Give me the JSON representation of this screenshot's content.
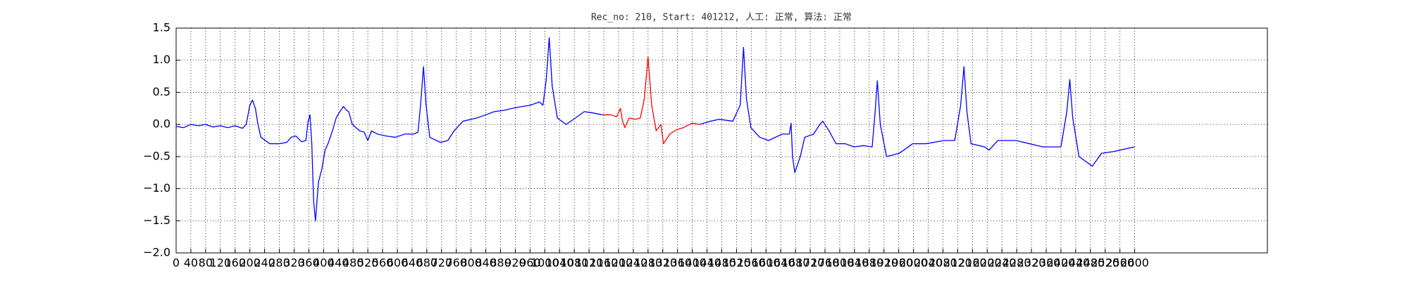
{
  "chart_data": {
    "type": "line",
    "title": "Rec_no: 210, Start: 401212, 人工: 正常, 算法: 正常",
    "xlim": [
      0,
      2960
    ],
    "xticks": [
      0,
      40,
      80,
      120,
      160,
      200,
      240,
      280,
      320,
      360,
      400,
      440,
      480,
      520,
      560,
      600,
      640,
      680,
      720,
      760,
      800,
      840,
      880,
      920,
      960,
      1000,
      1040,
      1080,
      1120,
      1160,
      1200,
      1240,
      1280,
      1320,
      1360,
      1400,
      1440,
      1480,
      1520,
      1560,
      1600,
      1640,
      1680,
      1720,
      1760,
      1800,
      1840,
      1880,
      1920,
      1960,
      2000,
      2040,
      2080,
      2120,
      2160,
      2200,
      2240,
      2280,
      2320,
      2360,
      2400,
      2440,
      2480,
      2520,
      2560,
      2600
    ],
    "ylim": [
      -2,
      1.5
    ],
    "yticks": [
      {
        "value": -2,
        "label": "−2.0"
      },
      {
        "value": -1.5,
        "label": "−1.5"
      },
      {
        "value": -1,
        "label": "−1.0"
      },
      {
        "value": -0.5,
        "label": "−0.5"
      },
      {
        "value": 0,
        "label": "0.0"
      },
      0.5,
      {
        "value": 1,
        "label": "1.0"
      },
      1.5
    ],
    "grid": true,
    "series": [
      {
        "color": "#0000ff",
        "x": [
          0,
          20,
          40,
          60,
          80,
          100,
          120,
          140,
          160,
          180,
          190,
          200,
          207,
          215,
          222,
          230,
          254,
          280,
          300,
          312,
          325,
          340,
          352,
          358,
          363,
          368,
          373,
          378,
          386,
          395,
          404,
          412,
          424,
          434,
          444,
          454,
          462,
          468,
          478,
          488,
          498,
          510,
          520,
          530,
          546,
          570,
          595,
          620,
          644,
          656,
          663,
          671,
          678,
          688,
          717,
          737,
          754,
          778,
          815,
          840,
          863,
          890,
          912,
          940,
          961,
          985,
          995,
          1004,
          1012,
          1020,
          1034,
          1058,
          1083,
          1107,
          1130,
          1156,
          1170,
          1420,
          1449,
          1473,
          1510,
          1530,
          1539,
          1547,
          1559,
          1583,
          1607,
          1644,
          1663,
          1668,
          1672,
          1678,
          1693,
          1705,
          1729,
          1746,
          1754,
          1771,
          1790,
          1815,
          1839,
          1864,
          1888,
          1896,
          1902,
          1910,
          1927,
          1961,
          1998,
          2034,
          2083,
          2112,
          2128,
          2137,
          2145,
          2156,
          2193,
          2205,
          2229,
          2278,
          2315,
          2351,
          2400,
          2416,
          2424,
          2432,
          2449,
          2473,
          2485,
          2510,
          2546,
          2575,
          2600
        ],
        "values": [
          -0.03,
          -0.05,
          0.0,
          -0.02,
          0.0,
          -0.04,
          -0.02,
          -0.05,
          -0.02,
          -0.06,
          0.0,
          0.3,
          0.38,
          0.25,
          0.0,
          -0.2,
          -0.3,
          -0.3,
          -0.28,
          -0.2,
          -0.18,
          -0.27,
          -0.25,
          0.05,
          0.15,
          -0.3,
          -1.2,
          -1.5,
          -0.9,
          -0.7,
          -0.4,
          -0.3,
          -0.1,
          0.1,
          0.2,
          0.28,
          0.22,
          0.2,
          0.0,
          -0.05,
          -0.1,
          -0.12,
          -0.25,
          -0.1,
          -0.15,
          -0.18,
          -0.2,
          -0.15,
          -0.15,
          -0.12,
          0.3,
          0.9,
          0.3,
          -0.2,
          -0.28,
          -0.25,
          -0.1,
          0.05,
          0.1,
          0.15,
          0.2,
          0.22,
          0.25,
          0.28,
          0.3,
          0.35,
          0.3,
          0.7,
          1.35,
          0.6,
          0.1,
          0.0,
          0.1,
          0.2,
          0.18,
          0.15,
          null,
          0.0,
          0.05,
          0.08,
          0.05,
          0.3,
          1.2,
          0.4,
          -0.05,
          -0.2,
          -0.25,
          -0.15,
          -0.15,
          0.02,
          -0.5,
          -0.75,
          -0.5,
          -0.2,
          -0.15,
          0.0,
          0.05,
          -0.1,
          -0.3,
          -0.3,
          -0.35,
          -0.33,
          -0.35,
          0.2,
          0.68,
          0.0,
          -0.5,
          -0.45,
          -0.3,
          -0.3,
          -0.25,
          -0.25,
          0.3,
          0.9,
          0.2,
          -0.3,
          -0.35,
          -0.4,
          -0.25,
          -0.25,
          -0.3,
          -0.35,
          -0.35,
          0.2,
          0.7,
          0.1,
          -0.5,
          -0.6,
          -0.65,
          -0.45,
          -0.42,
          -0.38,
          -0.35
        ]
      },
      {
        "color": "#ff0000",
        "x": [
          1156,
          1180,
          1195,
          1205,
          1211,
          1217,
          1229,
          1245,
          1259,
          1270,
          1280,
          1290,
          1302,
          1315,
          1322,
          1339,
          1358,
          1376,
          1400,
          1420
        ],
        "values": [
          0.15,
          0.15,
          0.12,
          0.25,
          0.05,
          -0.05,
          0.1,
          0.08,
          0.1,
          0.4,
          1.05,
          0.3,
          -0.1,
          0.0,
          -0.3,
          -0.15,
          -0.08,
          -0.05,
          0.02,
          0.0
        ]
      }
    ]
  }
}
